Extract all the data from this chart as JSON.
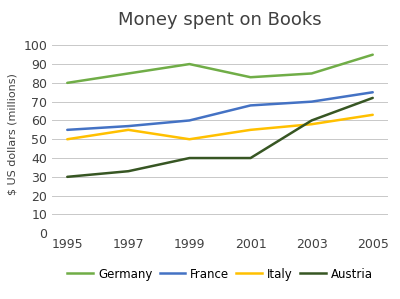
{
  "title": "Money spent on Books",
  "ylabel": "$ US dollars (millions)",
  "years": [
    1995,
    1997,
    1999,
    2001,
    2003,
    2005
  ],
  "series": [
    {
      "name": "Germany",
      "values": [
        80,
        85,
        90,
        83,
        85,
        95
      ],
      "color": "#70ad47",
      "linewidth": 1.8
    },
    {
      "name": "France",
      "values": [
        55,
        57,
        60,
        68,
        70,
        75
      ],
      "color": "#4472c4",
      "linewidth": 1.8
    },
    {
      "name": "Italy",
      "values": [
        50,
        55,
        50,
        55,
        58,
        63
      ],
      "color": "#ffc000",
      "linewidth": 1.8
    },
    {
      "name": "Austria",
      "values": [
        30,
        33,
        40,
        40,
        60,
        72
      ],
      "color": "#375623",
      "linewidth": 1.8
    }
  ],
  "ylim": [
    0,
    105
  ],
  "yticks": [
    0,
    10,
    20,
    30,
    40,
    50,
    60,
    70,
    80,
    90,
    100
  ],
  "background_color": "#ffffff",
  "grid_color": "#c8c8c8",
  "title_fontsize": 13,
  "tick_fontsize": 9,
  "ylabel_fontsize": 8,
  "legend_fontsize": 8.5
}
